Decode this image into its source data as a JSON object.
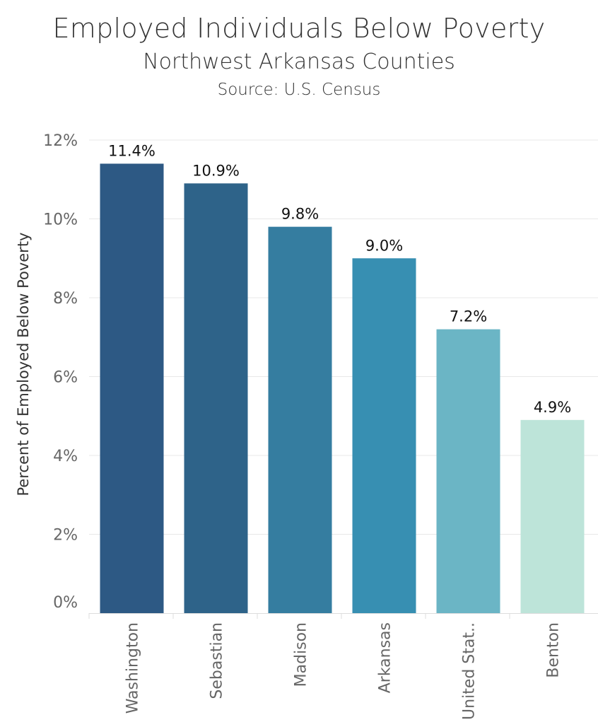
{
  "chart_data": {
    "type": "bar",
    "title": "Employed Individuals Below Poverty",
    "subtitle": "Northwest Arkansas Counties",
    "source": "Source: U.S. Census",
    "xlabel": "",
    "ylabel": "Percent of Employed Below Poverty",
    "ylim": [
      0,
      12
    ],
    "yticks": [
      0,
      2,
      4,
      6,
      8,
      10,
      12
    ],
    "ytick_labels": [
      "0%",
      "2%",
      "4%",
      "6%",
      "8%",
      "10%",
      "12%"
    ],
    "grid": true,
    "categories": [
      "Washington",
      "Sebastian",
      "Madison",
      "Arkansas",
      "United Stat..",
      "Benton"
    ],
    "values": [
      11.4,
      10.9,
      9.8,
      9.0,
      7.2,
      4.9
    ],
    "data_labels": [
      "11.4%",
      "10.9%",
      "9.8%",
      "9.0%",
      "7.2%",
      "4.9%"
    ],
    "colors": [
      "#2d5984",
      "#2e6389",
      "#357da0",
      "#378fb2",
      "#6bb5c5",
      "#bde4d9"
    ]
  }
}
